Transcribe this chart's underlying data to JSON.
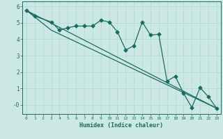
{
  "xlabel": "Humidex (Indice chaleur)",
  "background_color": "#cce8e4",
  "grid_color": "#b0d8d4",
  "line_color": "#1a6b60",
  "xlim": [
    -0.5,
    23.5
  ],
  "ylim": [
    -0.55,
    6.3
  ],
  "yticks": [
    0,
    1,
    2,
    3,
    4,
    5,
    6
  ],
  "ytick_labels": [
    "-0",
    "1",
    "2",
    "3",
    "4",
    "5",
    "6"
  ],
  "xticks": [
    0,
    1,
    2,
    3,
    4,
    5,
    6,
    7,
    8,
    9,
    10,
    11,
    12,
    13,
    14,
    15,
    16,
    17,
    18,
    19,
    20,
    21,
    22,
    23
  ],
  "series1_x": [
    0,
    1,
    3,
    4,
    5,
    6,
    7,
    8,
    9,
    10,
    11,
    12,
    13,
    14,
    15,
    16,
    17,
    18,
    19,
    20,
    21,
    22,
    23
  ],
  "series1_y": [
    5.75,
    5.4,
    5.05,
    4.55,
    4.7,
    4.8,
    4.8,
    4.8,
    5.15,
    5.05,
    4.45,
    3.35,
    3.6,
    5.05,
    4.25,
    4.3,
    1.45,
    1.75,
    0.7,
    -0.15,
    1.05,
    0.5,
    -0.2
  ],
  "series2_x": [
    0,
    23
  ],
  "series2_y": [
    5.75,
    -0.2
  ],
  "series3_x": [
    0,
    3,
    23
  ],
  "series3_y": [
    5.75,
    4.55,
    -0.2
  ],
  "marker": "D",
  "marker_size": 2.5,
  "linewidth": 0.9
}
